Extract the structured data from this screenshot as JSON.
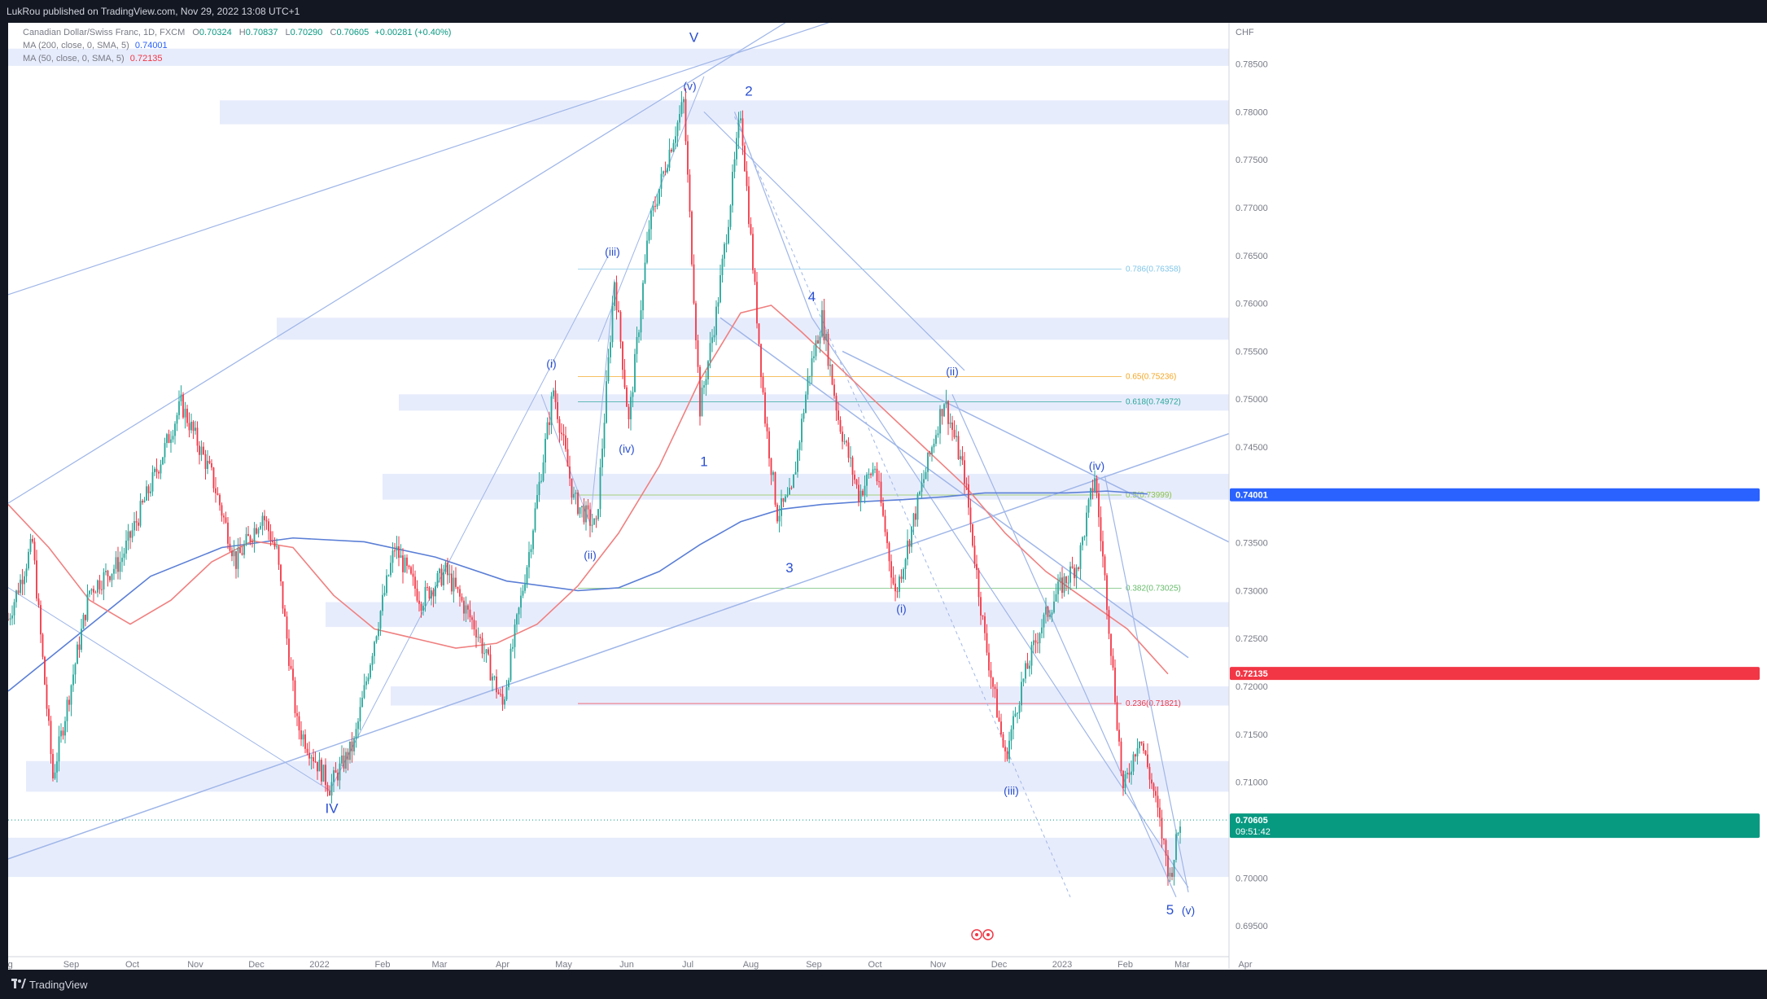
{
  "header": {
    "published": "LukRou published on TradingView.com, Nov 29, 2022 13:08 UTC+1"
  },
  "legend": {
    "symbol": "Canadian Dollar/Swiss Franc, 1D, FXCM",
    "o_label": "O",
    "o": "0.70324",
    "h_label": "H",
    "h": "0.70837",
    "l_label": "L",
    "l": "0.70290",
    "c_label": "C",
    "c": "0.70605",
    "change": "+0.00281 (+0.40%)",
    "ma200_label": "MA (200, close, 0, SMA, 5)",
    "ma200_value": "0.74001",
    "ma50_label": "MA (50, close, 0, SMA, 5)",
    "ma50_value": "0.72135"
  },
  "footer": {
    "brand": "TradingView"
  },
  "colors": {
    "up": "#26a69a",
    "down": "#f23645",
    "ma200": "#5b7fd6",
    "ma50": "#f08080",
    "zone": "#e3e9fb",
    "line": "#9fb6e8"
  },
  "chart_data": {
    "type": "candlestick",
    "currency_label": "CHF",
    "y_axis": {
      "min": 0.6905,
      "max": 0.7893,
      "ticks": [
        "0.78500",
        "0.78000",
        "0.77500",
        "0.77000",
        "0.76500",
        "0.76000",
        "0.75500",
        "0.75000",
        "0.74500",
        "0.74000",
        "0.73500",
        "0.73000",
        "0.72500",
        "0.72000",
        "0.71500",
        "0.71000",
        "0.70500",
        "0.70000",
        "0.69500"
      ]
    },
    "x_axis": {
      "ticks": [
        "Aug",
        "Sep",
        "Oct",
        "Nov",
        "Dec",
        "2022",
        "Feb",
        "Mar",
        "Apr",
        "May",
        "Jun",
        "Jul",
        "Aug",
        "Sep",
        "Oct",
        "Nov",
        "Dec",
        "2023",
        "Feb",
        "Mar",
        "Apr"
      ]
    },
    "price_badges": [
      {
        "label": "0.74001",
        "price": 0.74001,
        "color": "#2962ff"
      },
      {
        "label": "0.72135",
        "price": 0.72135,
        "color": "#f23645"
      },
      {
        "label": "0.70605",
        "price": 0.70605,
        "color": "#089981",
        "sub": "09:51:42"
      }
    ],
    "fib_levels": [
      {
        "label": "0.786(0.76358)",
        "price": 0.76358,
        "color": "#81c6e8"
      },
      {
        "label": "0.65(0.75236)",
        "price": 0.75236,
        "color": "#f5a623"
      },
      {
        "label": "0.618(0.74972)",
        "price": 0.74972,
        "color": "#26a69a"
      },
      {
        "label": "0.5(0.73999)",
        "price": 0.73999,
        "color": "#8bc34a"
      },
      {
        "label": "0.382(0.73025)",
        "price": 0.73025,
        "color": "#66bb6a"
      },
      {
        "label": "0.236(0.71821)",
        "price": 0.71821,
        "color": "#f23645"
      }
    ],
    "wave_labels": [
      {
        "text": "V",
        "day": 337,
        "price": 0.7873
      },
      {
        "text": "(v)",
        "day": 335,
        "price": 0.7823
      },
      {
        "text": "2",
        "day": 364,
        "price": 0.7817
      },
      {
        "text": "(iii)",
        "day": 297,
        "price": 0.765
      },
      {
        "text": "4",
        "day": 395,
        "price": 0.7602
      },
      {
        "text": "(i)",
        "day": 267,
        "price": 0.7533
      },
      {
        "text": "(ii)",
        "day": 464,
        "price": 0.7525
      },
      {
        "text": "(iv)",
        "day": 304,
        "price": 0.7444
      },
      {
        "text": "1",
        "day": 342,
        "price": 0.743
      },
      {
        "text": "(iv)",
        "day": 535,
        "price": 0.7426
      },
      {
        "text": "(ii)",
        "day": 286,
        "price": 0.7333
      },
      {
        "text": "3",
        "day": 384,
        "price": 0.7319
      },
      {
        "text": "(i)",
        "day": 439,
        "price": 0.7277
      },
      {
        "text": "(iii)",
        "day": 493,
        "price": 0.7087
      },
      {
        "text": "IV",
        "day": 159,
        "price": 0.7068
      },
      {
        "text": "5",
        "day": 571,
        "price": 0.6962
      },
      {
        "text": "(v)",
        "day": 580,
        "price": 0.6962
      }
    ],
    "series": [
      {
        "name": "MA (200, close, 0, SMA, 5)",
        "x": [
          0,
          35,
          70,
          105,
          140,
          175,
          210,
          245,
          280,
          300,
          320,
          340,
          360,
          380,
          400,
          420,
          440,
          460,
          480,
          500,
          520,
          540,
          560
        ],
        "values": [
          0.7195,
          0.7255,
          0.7315,
          0.7345,
          0.7355,
          0.7351,
          0.7335,
          0.731,
          0.73,
          0.7303,
          0.732,
          0.7348,
          0.7372,
          0.7385,
          0.739,
          0.7393,
          0.7395,
          0.7398,
          0.7402,
          0.7402,
          0.7402,
          0.7404,
          0.7401
        ]
      },
      {
        "name": "MA (50, close, 0, SMA, 5)",
        "x": [
          0,
          20,
          40,
          60,
          80,
          100,
          120,
          140,
          160,
          180,
          200,
          220,
          240,
          260,
          280,
          300,
          320,
          340,
          360,
          375,
          390,
          410,
          430,
          450,
          470,
          490,
          510,
          530,
          550,
          570
        ],
        "values": [
          0.739,
          0.7345,
          0.729,
          0.7265,
          0.729,
          0.733,
          0.7352,
          0.7345,
          0.7295,
          0.726,
          0.725,
          0.724,
          0.7245,
          0.7265,
          0.7305,
          0.736,
          0.743,
          0.752,
          0.759,
          0.7598,
          0.757,
          0.753,
          0.749,
          0.745,
          0.741,
          0.736,
          0.732,
          0.729,
          0.726,
          0.7213
        ]
      }
    ],
    "swings": [
      {
        "day": 0,
        "price": 0.727
      },
      {
        "day": 12,
        "price": 0.735
      },
      {
        "day": 22,
        "price": 0.7105
      },
      {
        "day": 40,
        "price": 0.73
      },
      {
        "day": 55,
        "price": 0.733
      },
      {
        "day": 72,
        "price": 0.742
      },
      {
        "day": 85,
        "price": 0.7495
      },
      {
        "day": 100,
        "price": 0.742
      },
      {
        "day": 112,
        "price": 0.733
      },
      {
        "day": 125,
        "price": 0.738
      },
      {
        "day": 132,
        "price": 0.734
      },
      {
        "day": 142,
        "price": 0.716
      },
      {
        "day": 158,
        "price": 0.7095
      },
      {
        "day": 170,
        "price": 0.714
      },
      {
        "day": 180,
        "price": 0.725
      },
      {
        "day": 190,
        "price": 0.7345
      },
      {
        "day": 203,
        "price": 0.729
      },
      {
        "day": 215,
        "price": 0.732
      },
      {
        "day": 230,
        "price": 0.726
      },
      {
        "day": 243,
        "price": 0.718
      },
      {
        "day": 256,
        "price": 0.734
      },
      {
        "day": 268,
        "price": 0.751
      },
      {
        "day": 278,
        "price": 0.7395
      },
      {
        "day": 289,
        "price": 0.7365
      },
      {
        "day": 298,
        "price": 0.7625
      },
      {
        "day": 305,
        "price": 0.7475
      },
      {
        "day": 315,
        "price": 0.768
      },
      {
        "day": 325,
        "price": 0.776
      },
      {
        "day": 332,
        "price": 0.781
      },
      {
        "day": 340,
        "price": 0.749
      },
      {
        "day": 348,
        "price": 0.759
      },
      {
        "day": 354,
        "price": 0.769
      },
      {
        "day": 360,
        "price": 0.78
      },
      {
        "day": 372,
        "price": 0.748
      },
      {
        "day": 378,
        "price": 0.738
      },
      {
        "day": 385,
        "price": 0.74
      },
      {
        "day": 393,
        "price": 0.752
      },
      {
        "day": 400,
        "price": 0.7585
      },
      {
        "day": 408,
        "price": 0.748
      },
      {
        "day": 418,
        "price": 0.74
      },
      {
        "day": 426,
        "price": 0.743
      },
      {
        "day": 436,
        "price": 0.7295
      },
      {
        "day": 448,
        "price": 0.74
      },
      {
        "day": 460,
        "price": 0.75
      },
      {
        "day": 470,
        "price": 0.742
      },
      {
        "day": 480,
        "price": 0.725
      },
      {
        "day": 490,
        "price": 0.7125
      },
      {
        "day": 498,
        "price": 0.72
      },
      {
        "day": 507,
        "price": 0.726
      },
      {
        "day": 516,
        "price": 0.73
      },
      {
        "day": 526,
        "price": 0.733
      },
      {
        "day": 534,
        "price": 0.742
      },
      {
        "day": 540,
        "price": 0.729
      },
      {
        "day": 548,
        "price": 0.709
      },
      {
        "day": 556,
        "price": 0.715
      },
      {
        "day": 563,
        "price": 0.709
      },
      {
        "day": 571,
        "price": 0.7
      },
      {
        "day": 576,
        "price": 0.706
      }
    ]
  }
}
